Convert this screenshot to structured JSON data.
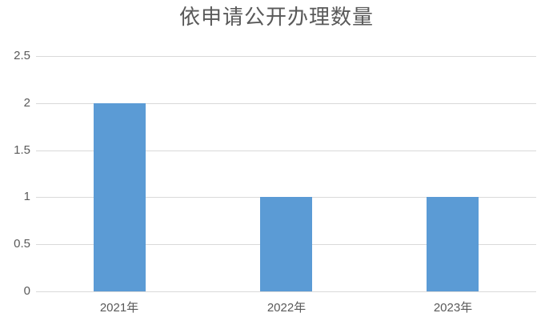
{
  "chart_data": {
    "type": "bar",
    "title": "依申请公开办理数量",
    "categories": [
      "2021年",
      "2022年",
      "2023年"
    ],
    "values": [
      2,
      1,
      1
    ],
    "xlabel": "",
    "ylabel": "",
    "ylim": [
      0,
      2.5
    ],
    "yticks": [
      0,
      0.5,
      1,
      1.5,
      2,
      2.5
    ],
    "ytick_labels": [
      "0",
      "0.5",
      "1",
      "1.5",
      "2",
      "2.5"
    ],
    "grid": true,
    "legend": false,
    "colors": {
      "bar": "#5B9BD5",
      "gridline": "#D9D9D9",
      "axis_line": "#D9D9D9",
      "tick_label": "#595959",
      "title": "#595959",
      "background": "#FFFFFF"
    }
  }
}
